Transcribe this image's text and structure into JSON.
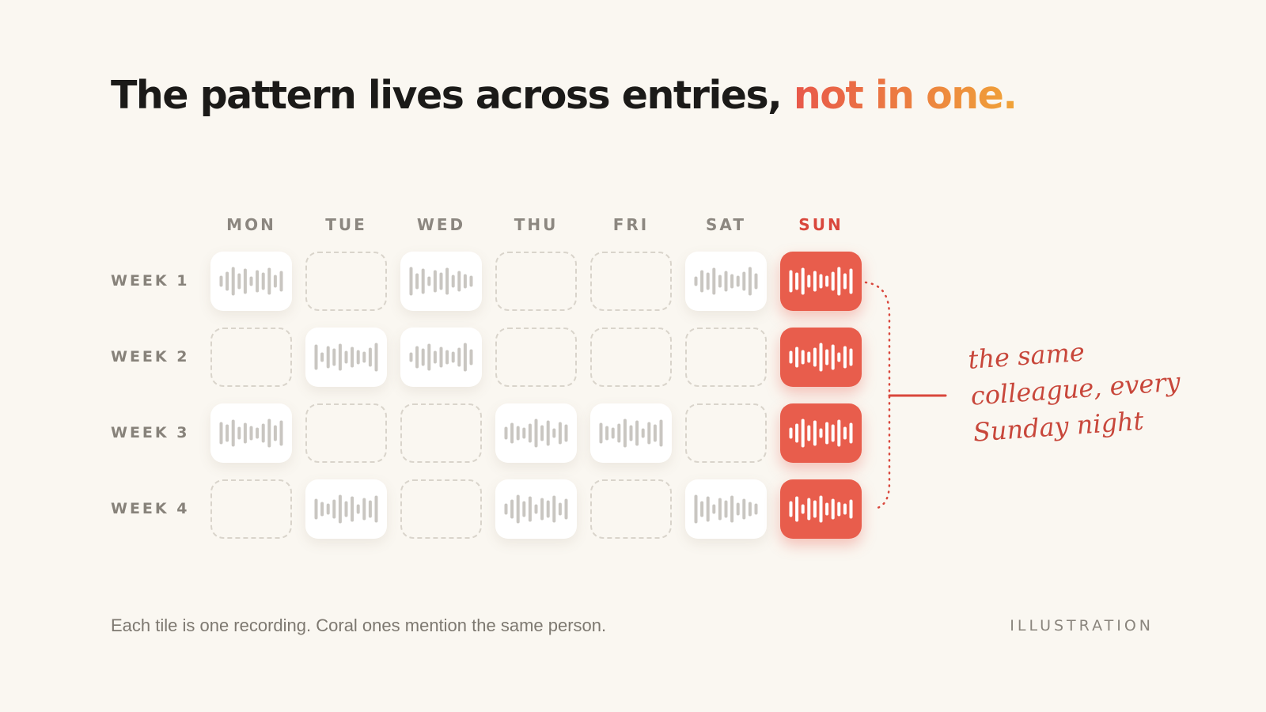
{
  "headline": {
    "main": "The pattern lives across entries, ",
    "accent": "not in one."
  },
  "days": [
    "MON",
    "TUE",
    "WED",
    "THU",
    "FRI",
    "SAT",
    "SUN"
  ],
  "highlight_day": "SUN",
  "weeks": [
    {
      "label": "WEEK 1",
      "tiles": [
        "plain",
        "empty",
        "plain",
        "empty",
        "empty",
        "plain",
        "coral"
      ]
    },
    {
      "label": "WEEK 2",
      "tiles": [
        "empty",
        "plain",
        "plain",
        "empty",
        "empty",
        "empty",
        "coral"
      ]
    },
    {
      "label": "WEEK 3",
      "tiles": [
        "plain",
        "empty",
        "empty",
        "plain",
        "plain",
        "empty",
        "coral"
      ]
    },
    {
      "label": "WEEK 4",
      "tiles": [
        "empty",
        "plain",
        "empty",
        "plain",
        "empty",
        "plain",
        "coral"
      ]
    }
  ],
  "annotation": {
    "lines": [
      "the same",
      "colleague, every",
      "Sunday night"
    ]
  },
  "caption": "Each tile is one recording. Coral ones mention the same person.",
  "tag": "ILLUSTRATION",
  "colors": {
    "coral": "#e85d4c",
    "accent_start": "#e8584a",
    "accent_end": "#f0a338",
    "waveform_plain": "#c9c6c1",
    "waveform_coral": "#ffffff",
    "annotation": "#c8473b"
  },
  "icons": {
    "tile_recording": "waveform-icon"
  }
}
